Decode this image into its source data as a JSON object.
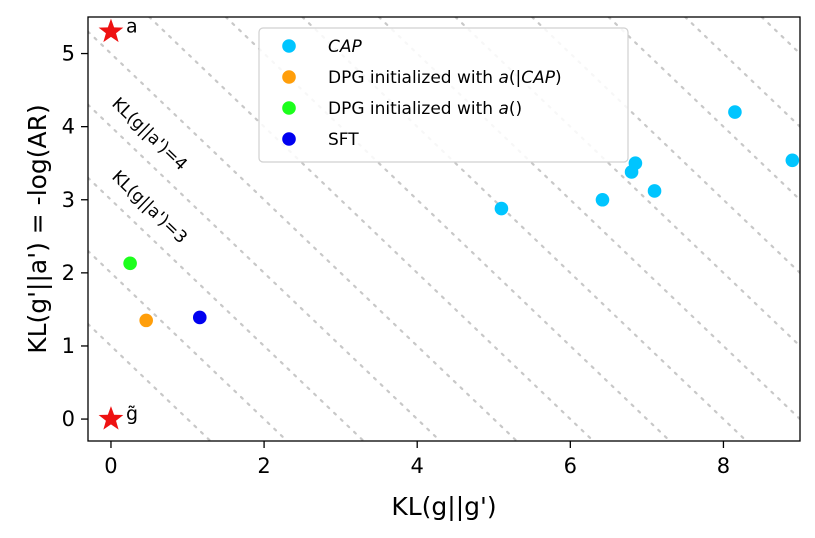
{
  "chart_data": {
    "type": "scatter",
    "xlabel": "KL(g||g')",
    "ylabel": "KL(g'||a') = -log(AR)",
    "xlim": [
      -0.3,
      9.0
    ],
    "ylim": [
      -0.3,
      5.5
    ],
    "xticks": [
      0,
      2,
      4,
      6,
      8
    ],
    "yticks": [
      0,
      1,
      2,
      3,
      4,
      5
    ],
    "grid": false,
    "legend_position": "top-center",
    "series": [
      {
        "name_prefix": "",
        "name_italic": "CAP",
        "name_suffix": "",
        "color": "#00c5ff",
        "points": [
          {
            "x": 5.1,
            "y": 2.88
          },
          {
            "x": 6.42,
            "y": 3.0
          },
          {
            "x": 6.8,
            "y": 3.38
          },
          {
            "x": 6.85,
            "y": 3.5
          },
          {
            "x": 7.1,
            "y": 3.12
          },
          {
            "x": 8.15,
            "y": 4.2
          },
          {
            "x": 8.9,
            "y": 3.54
          }
        ]
      },
      {
        "name_prefix": "DPG initialized with ",
        "name_italic": "a",
        "name_suffix": "(|CAP)",
        "name_suffix_italic_part": "CAP",
        "color": "#ff9e0a",
        "points": [
          {
            "x": 0.46,
            "y": 1.35
          }
        ]
      },
      {
        "name_prefix": "DPG initialized with ",
        "name_italic": "a",
        "name_suffix": "()",
        "color": "#1cff1c",
        "points": [
          {
            "x": 0.25,
            "y": 2.13
          }
        ]
      },
      {
        "name_prefix": "",
        "name_italic": "",
        "name_suffix": "SFT",
        "color": "#0000f0",
        "points": [
          {
            "x": 1.16,
            "y": 1.39
          }
        ]
      }
    ],
    "stars": [
      {
        "x": 0,
        "y": 5.3,
        "label": "a",
        "color": "#ee1111"
      },
      {
        "x": 0,
        "y": 0.0,
        "label": "g̃",
        "color": "#ee1111"
      }
    ],
    "iso_lines": {
      "sums": [
        1,
        2,
        3,
        4,
        5,
        6,
        7,
        8,
        9,
        10,
        11,
        12,
        13,
        14
      ],
      "color": "#c8c8c8"
    },
    "iso_labels": [
      {
        "text": "KL(g||a')=4",
        "anchor_x": 0.0,
        "anchor_y": 4.3
      },
      {
        "text": "KL(g||a')=3",
        "anchor_x": 0.0,
        "anchor_y": 3.3
      }
    ]
  }
}
